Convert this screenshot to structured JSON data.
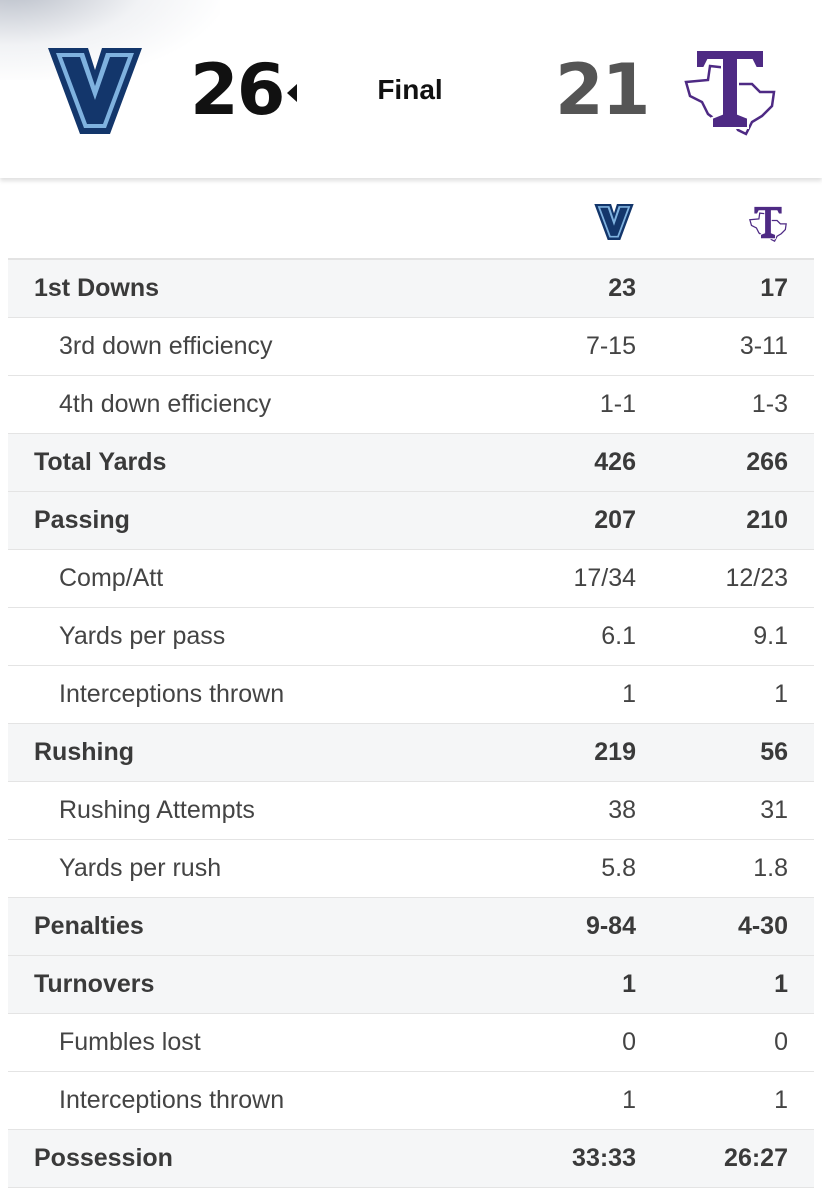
{
  "scoreboard": {
    "away_score": "26",
    "home_score": "21",
    "status": "Final",
    "away_logo_icon": "villanova-v-logo",
    "home_logo_icon": "tarleton-t-texas-logo",
    "away_color": "#13366b",
    "home_color": "#4e2a84"
  },
  "stats": [
    {
      "label": "1st Downs",
      "away": "23",
      "home": "17",
      "level": "main"
    },
    {
      "label": "3rd down efficiency",
      "away": "7-15",
      "home": "3-11",
      "level": "sub"
    },
    {
      "label": "4th down efficiency",
      "away": "1-1",
      "home": "1-3",
      "level": "sub"
    },
    {
      "label": "Total Yards",
      "away": "426",
      "home": "266",
      "level": "main"
    },
    {
      "label": "Passing",
      "away": "207",
      "home": "210",
      "level": "main"
    },
    {
      "label": "Comp/Att",
      "away": "17/34",
      "home": "12/23",
      "level": "sub"
    },
    {
      "label": "Yards per pass",
      "away": "6.1",
      "home": "9.1",
      "level": "sub"
    },
    {
      "label": "Interceptions thrown",
      "away": "1",
      "home": "1",
      "level": "sub"
    },
    {
      "label": "Rushing",
      "away": "219",
      "home": "56",
      "level": "main"
    },
    {
      "label": "Rushing Attempts",
      "away": "38",
      "home": "31",
      "level": "sub"
    },
    {
      "label": "Yards per rush",
      "away": "5.8",
      "home": "1.8",
      "level": "sub"
    },
    {
      "label": "Penalties",
      "away": "9-84",
      "home": "4-30",
      "level": "main"
    },
    {
      "label": "Turnovers",
      "away": "1",
      "home": "1",
      "level": "main"
    },
    {
      "label": "Fumbles lost",
      "away": "0",
      "home": "0",
      "level": "sub"
    },
    {
      "label": "Interceptions thrown",
      "away": "1",
      "home": "1",
      "level": "sub"
    },
    {
      "label": "Possession",
      "away": "33:33",
      "home": "26:27",
      "level": "main"
    }
  ]
}
